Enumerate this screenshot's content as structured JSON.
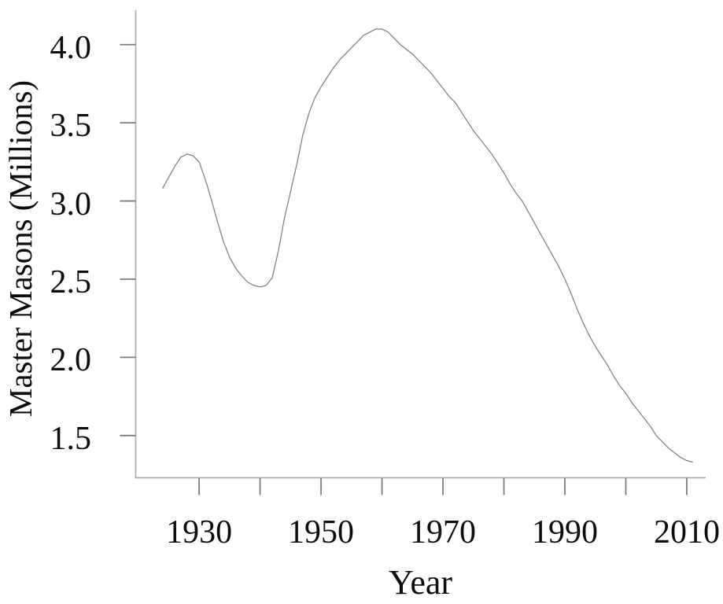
{
  "chart_data": {
    "type": "line",
    "title": "",
    "xlabel": "Year",
    "ylabel": "Master Masons (Millions)",
    "xlim": [
      1919.6,
      2013.1
    ],
    "ylim": [
      1.23,
      4.22
    ],
    "grid": false,
    "legend_position": "none",
    "x_ticks": [
      {
        "value": 1930,
        "label": "1930"
      },
      {
        "value": 1940,
        "label": ""
      },
      {
        "value": 1950,
        "label": "1950"
      },
      {
        "value": 1960,
        "label": ""
      },
      {
        "value": 1970,
        "label": "1970"
      },
      {
        "value": 1980,
        "label": ""
      },
      {
        "value": 1990,
        "label": "1990"
      },
      {
        "value": 2000,
        "label": ""
      },
      {
        "value": 2010,
        "label": "2010"
      }
    ],
    "y_ticks": [
      {
        "value": 1.5,
        "label": "1.5"
      },
      {
        "value": 2.0,
        "label": "2.0"
      },
      {
        "value": 2.5,
        "label": "2.5"
      },
      {
        "value": 3.0,
        "label": "3.0"
      },
      {
        "value": 3.5,
        "label": "3.5"
      },
      {
        "value": 4.0,
        "label": "4.0"
      }
    ],
    "series": [
      {
        "name": "Master Masons (Millions)",
        "x": [
          1924,
          1925,
          1926,
          1927,
          1928,
          1929,
          1930,
          1931,
          1932,
          1933,
          1934,
          1935,
          1936,
          1937,
          1938,
          1939,
          1940,
          1941,
          1942,
          1943,
          1944,
          1945,
          1946,
          1947,
          1948,
          1949,
          1950,
          1951,
          1952,
          1953,
          1954,
          1955,
          1956,
          1957,
          1958,
          1959,
          1960,
          1961,
          1962,
          1963,
          1964,
          1965,
          1966,
          1967,
          1968,
          1969,
          1970,
          1971,
          1972,
          1973,
          1974,
          1975,
          1976,
          1977,
          1978,
          1979,
          1980,
          1981,
          1982,
          1983,
          1984,
          1985,
          1986,
          1987,
          1988,
          1989,
          1990,
          1991,
          1992,
          1993,
          1994,
          1995,
          1996,
          1997,
          1998,
          1999,
          2000,
          2001,
          2002,
          2003,
          2004,
          2005,
          2006,
          2007,
          2008,
          2009,
          2010,
          2011
        ],
        "y": [
          3.08,
          3.15,
          3.22,
          3.28,
          3.3,
          3.29,
          3.25,
          3.14,
          3.01,
          2.87,
          2.74,
          2.64,
          2.57,
          2.52,
          2.48,
          2.46,
          2.45,
          2.46,
          2.51,
          2.68,
          2.89,
          3.06,
          3.23,
          3.42,
          3.56,
          3.66,
          3.73,
          3.79,
          3.85,
          3.9,
          3.94,
          3.98,
          4.02,
          4.06,
          4.08,
          4.1,
          4.1,
          4.08,
          4.04,
          4.0,
          3.97,
          3.94,
          3.9,
          3.86,
          3.82,
          3.77,
          3.72,
          3.67,
          3.63,
          3.57,
          3.51,
          3.45,
          3.4,
          3.35,
          3.3,
          3.24,
          3.18,
          3.11,
          3.05,
          3.0,
          2.93,
          2.86,
          2.79,
          2.72,
          2.65,
          2.58,
          2.5,
          2.41,
          2.31,
          2.22,
          2.14,
          2.07,
          2.01,
          1.95,
          1.88,
          1.82,
          1.77,
          1.71,
          1.66,
          1.61,
          1.56,
          1.5,
          1.46,
          1.42,
          1.39,
          1.36,
          1.34,
          1.33
        ]
      }
    ],
    "colors": {
      "line": "#7f7f7f",
      "axis": "#ababab",
      "tick": "#7d7d7d",
      "text": "#0d0d0d",
      "background": "#ffffff"
    }
  }
}
